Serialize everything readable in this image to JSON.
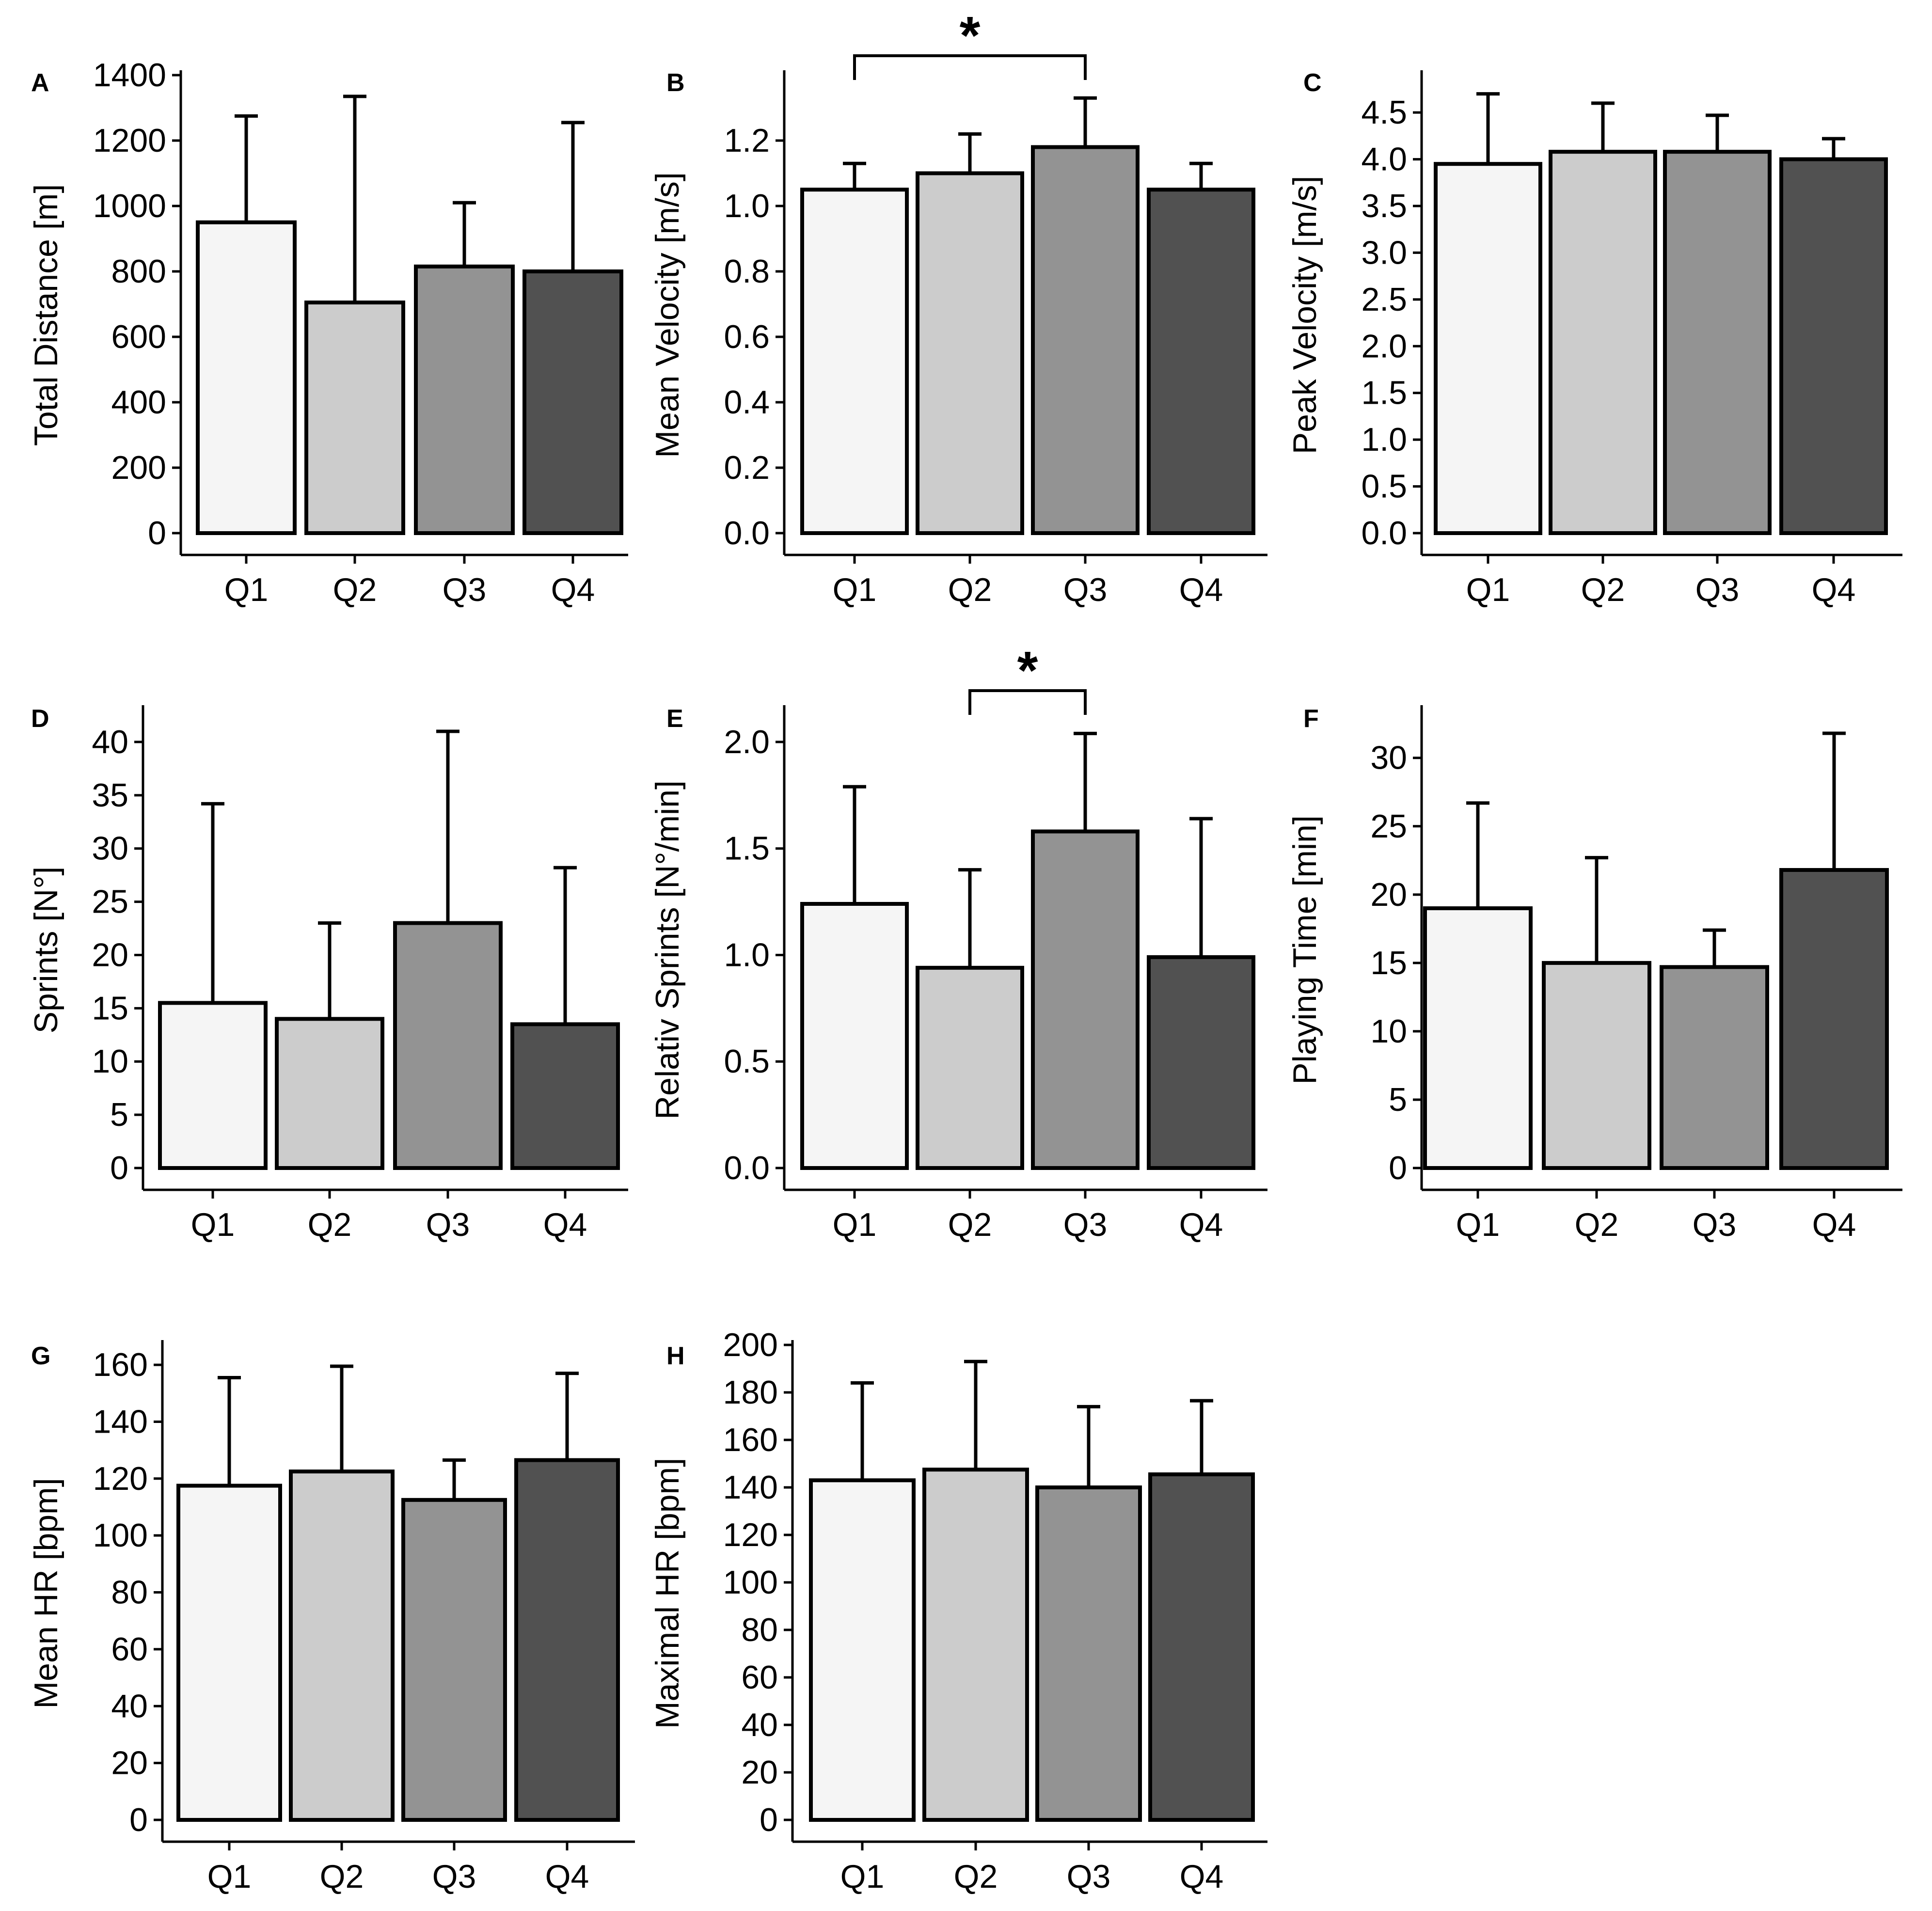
{
  "figure": {
    "description_colors": {
      "Q1": "#f5f5f5",
      "Q2": "#cccccc",
      "Q3": "#939393",
      "Q4": "#515151"
    }
  },
  "chart_data": [
    {
      "id": "A",
      "letter": "A",
      "type": "bar",
      "title": "",
      "xlabel": "",
      "ylabel": "Total Distance [m]",
      "categories": [
        "Q1",
        "Q2",
        "Q3",
        "Q4"
      ],
      "values": [
        950,
        705,
        815,
        800
      ],
      "errors": [
        1275,
        1335,
        1010,
        1255
      ],
      "ylim": [
        0,
        1400
      ],
      "ticks": [
        0,
        200,
        400,
        600,
        800,
        1000,
        1200,
        1400
      ],
      "tick_labels": [
        "0",
        "200",
        "400",
        "600",
        "800",
        "1000",
        "1200",
        "1400"
      ],
      "significance": []
    },
    {
      "id": "B",
      "letter": "B",
      "type": "bar",
      "title": "",
      "xlabel": "",
      "ylabel": "Mean Velocity [m/s]",
      "categories": [
        "Q1",
        "Q2",
        "Q3",
        "Q4"
      ],
      "values": [
        1.05,
        1.1,
        1.18,
        1.05
      ],
      "errors": [
        1.13,
        1.22,
        1.33,
        1.13
      ],
      "ylim": [
        0,
        1.4
      ],
      "ticks": [
        0,
        0.2,
        0.4,
        0.6,
        0.8,
        1.0,
        1.2
      ],
      "tick_labels": [
        "0.0",
        "0.2",
        "0.4",
        "0.6",
        "0.8",
        "1.0",
        "1.2"
      ],
      "significance": [
        {
          "from": "Q1",
          "to": "Q3",
          "label": "*"
        }
      ]
    },
    {
      "id": "C",
      "letter": "C",
      "type": "bar",
      "title": "",
      "xlabel": "",
      "ylabel": "Peak Velocity [m/s]",
      "categories": [
        "Q1",
        "Q2",
        "Q3",
        "Q4"
      ],
      "values": [
        3.95,
        4.08,
        4.08,
        4.0
      ],
      "errors": [
        4.7,
        4.6,
        4.47,
        4.22
      ],
      "ylim": [
        0,
        4.9
      ],
      "ticks": [
        0,
        0.5,
        1.0,
        1.5,
        2.0,
        2.5,
        3.0,
        3.5,
        4.0,
        4.5
      ],
      "tick_labels": [
        "0.0",
        "0.5",
        "1.0",
        "1.5",
        "2.0",
        "2.5",
        "3.0",
        "3.5",
        "4.0",
        "4.5"
      ],
      "significance": []
    },
    {
      "id": "D",
      "letter": "D",
      "type": "bar",
      "title": "",
      "xlabel": "",
      "ylabel": "Sprints [N°]",
      "categories": [
        "Q1",
        "Q2",
        "Q3",
        "Q4"
      ],
      "values": [
        15.5,
        14.0,
        23.0,
        13.5
      ],
      "errors": [
        34.2,
        23.0,
        41.0,
        28.2
      ],
      "ylim": [
        0,
        43
      ],
      "ticks": [
        0,
        5,
        10,
        15,
        20,
        25,
        30,
        35,
        40
      ],
      "tick_labels": [
        "0",
        "5",
        "10",
        "15",
        "20",
        "25",
        "30",
        "35",
        "40"
      ],
      "significance": []
    },
    {
      "id": "E",
      "letter": "E",
      "type": "bar",
      "title": "",
      "xlabel": "",
      "ylabel": "Relativ Sprints [N°/min]",
      "categories": [
        "Q1",
        "Q2",
        "Q3",
        "Q4"
      ],
      "values": [
        1.24,
        0.94,
        1.58,
        0.99
      ],
      "errors": [
        1.79,
        1.4,
        2.04,
        1.64
      ],
      "ylim": [
        0,
        2.15
      ],
      "ticks": [
        0,
        0.5,
        1.0,
        1.5,
        2.0
      ],
      "tick_labels": [
        "0.0",
        "0.5",
        "1.0",
        "1.5",
        "2.0"
      ],
      "significance": [
        {
          "from": "Q2",
          "to": "Q3",
          "label": "*"
        }
      ]
    },
    {
      "id": "F",
      "letter": "F",
      "type": "bar",
      "title": "",
      "xlabel": "",
      "ylabel": "Playing Time [min]",
      "categories": [
        "Q1",
        "Q2",
        "Q3",
        "Q4"
      ],
      "values": [
        19.0,
        15.0,
        14.7,
        21.8
      ],
      "errors": [
        26.7,
        22.7,
        17.4,
        31.8
      ],
      "ylim": [
        0,
        33.5
      ],
      "ticks": [
        0,
        5,
        10,
        15,
        20,
        25,
        30
      ],
      "tick_labels": [
        "0",
        "5",
        "10",
        "15",
        "20",
        "25",
        "30"
      ],
      "significance": []
    },
    {
      "id": "G",
      "letter": "G",
      "type": "bar",
      "title": "",
      "xlabel": "",
      "ylabel": "Mean HR [bpm]",
      "categories": [
        "Q1",
        "Q2",
        "Q3",
        "Q4"
      ],
      "values": [
        117.5,
        122.5,
        112.5,
        126.5
      ],
      "errors": [
        155.5,
        159.5,
        126.5,
        157.0
      ],
      "ylim": [
        0,
        167
      ],
      "ticks": [
        0,
        20,
        40,
        60,
        80,
        100,
        120,
        140,
        160
      ],
      "tick_labels": [
        "0",
        "20",
        "40",
        "60",
        "80",
        "100",
        "120",
        "140",
        "160"
      ],
      "significance": []
    },
    {
      "id": "H",
      "letter": "H",
      "type": "bar",
      "title": "",
      "xlabel": "",
      "ylabel": "Maximal HR [bpm]",
      "categories": [
        "Q1",
        "Q2",
        "Q3",
        "Q4"
      ],
      "values": [
        143.0,
        147.5,
        140.0,
        145.5
      ],
      "errors": [
        184.0,
        193.0,
        174.0,
        176.5
      ],
      "ylim": [
        0,
        200
      ],
      "ticks": [
        0,
        20,
        40,
        60,
        80,
        100,
        120,
        140,
        160,
        180,
        200
      ],
      "tick_labels": [
        "0",
        "20",
        "40",
        "60",
        "80",
        "100",
        "120",
        "140",
        "160",
        "180",
        "200"
      ],
      "significance": []
    }
  ]
}
